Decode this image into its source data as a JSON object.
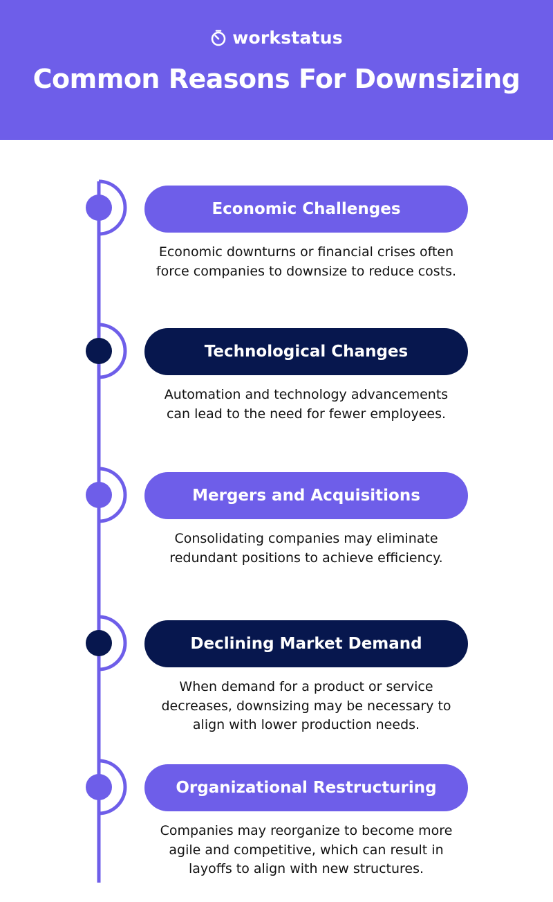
{
  "colors": {
    "accent": "#6e5ee9",
    "dark": "#07174e",
    "text": "#111111",
    "background": "#ffffff"
  },
  "header": {
    "logo_icon": "stopwatch-icon",
    "logo_text": "workstatus",
    "title": "Common Reasons For Downsizing"
  },
  "items": [
    {
      "title": "Economic Challenges",
      "style": "light",
      "description": "Economic downturns or financial crises often force companies to downsize to reduce costs."
    },
    {
      "title": "Technological Changes",
      "style": "dark",
      "description": "Automation and technology advancements can lead to the need for fewer employees."
    },
    {
      "title": "Mergers and Acquisitions",
      "style": "light",
      "description": "Consolidating companies may eliminate redundant positions to achieve efficiency."
    },
    {
      "title": "Declining Market Demand",
      "style": "dark",
      "description": "When demand for a product or service decreases, downsizing may be necessary to align with lower production needs."
    },
    {
      "title": "Organizational Restructuring",
      "style": "light",
      "description": "Companies may reorganize to become more agile and competitive, which can result in layoffs to align with new structures."
    }
  ]
}
